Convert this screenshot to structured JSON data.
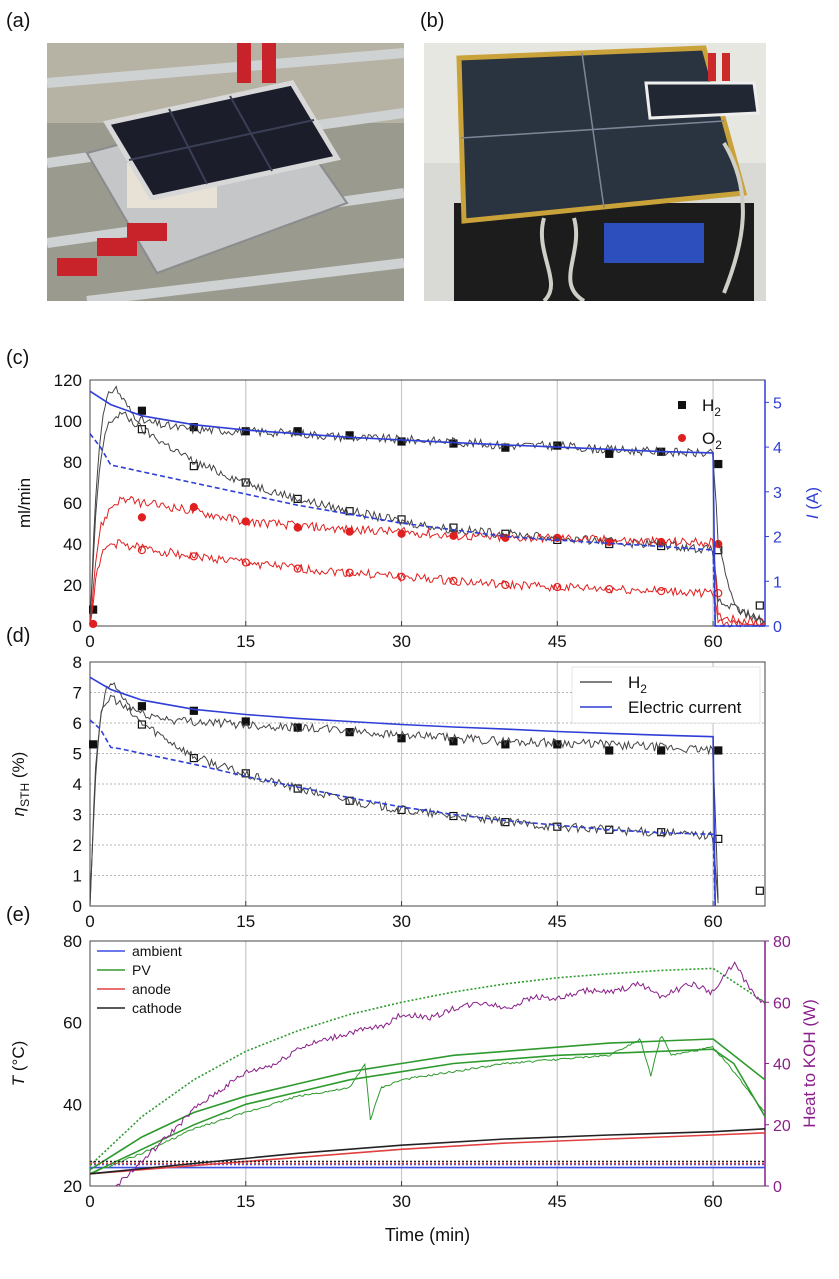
{
  "panels": {
    "a": "(a)",
    "b": "(b)",
    "c": "(c)",
    "d": "(d)",
    "e": "(e)"
  },
  "photos": {
    "a": "solar-cell-mini-module-on-rooftop-rack-photo",
    "b": "large-pv-panel-with-electrolyzer-in-lab-photo"
  },
  "colors": {
    "h2": "#111111",
    "o2": "#e02020",
    "current": "#2f3fd6",
    "ambient": "#3a4fe0",
    "pv": "#2e9a2e",
    "anode": "#e04040",
    "cathode": "#222222",
    "heat": "#8a1f8a",
    "grid": "#c8c8c8"
  },
  "chart_data": [
    {
      "id": "c",
      "type": "line",
      "xlabel": "",
      "ylabel": "ml/min",
      "y2label": "I (A)",
      "xlim": [
        0,
        65
      ],
      "ylim": [
        0,
        120
      ],
      "y2lim": [
        0,
        5.5
      ],
      "xticks": [
        0,
        15,
        30,
        45,
        60
      ],
      "yticks": [
        0,
        20,
        40,
        60,
        80,
        100,
        120
      ],
      "y2ticks": [
        0,
        1,
        2,
        3,
        4,
        5
      ],
      "legend": {
        "position": "top-right",
        "entries": [
          {
            "label": "H",
            "sub": "2",
            "marker": "square",
            "color": "#111111"
          },
          {
            "label": "O",
            "sub": "2",
            "marker": "circle",
            "color": "#e02020"
          }
        ]
      },
      "series": [
        {
          "name": "H2",
          "kind": "markers-filled",
          "color": "#111111",
          "x": [
            0.3,
            5,
            10,
            15,
            20,
            25,
            30,
            35,
            40,
            45,
            50,
            55,
            60.5
          ],
          "y": [
            8,
            105,
            97,
            95,
            95,
            93,
            90,
            89,
            87,
            88,
            84,
            85,
            79
          ]
        },
        {
          "kind": "markers-open",
          "color": "#111111",
          "x": [
            5,
            10,
            15,
            20,
            25,
            30,
            35,
            40,
            45,
            50,
            55,
            60.5,
            64.5
          ],
          "y": [
            96,
            78,
            70,
            62,
            56,
            52,
            48,
            45,
            42,
            40,
            39,
            37,
            10
          ]
        },
        {
          "name": "O2",
          "kind": "markers-filled",
          "color": "#e02020",
          "x": [
            0.3,
            5,
            10,
            15,
            20,
            25,
            30,
            35,
            40,
            45,
            50,
            55,
            60.5
          ],
          "y": [
            1,
            53,
            58,
            51,
            48,
            46,
            45,
            44,
            43,
            43,
            41,
            41,
            40
          ]
        },
        {
          "kind": "markers-open",
          "color": "#e02020",
          "x": [
            5,
            10,
            15,
            20,
            25,
            30,
            35,
            40,
            45,
            50,
            55,
            60.5,
            64.5
          ],
          "y": [
            37,
            34,
            31,
            28,
            26,
            24,
            22,
            20,
            19,
            18,
            17,
            16,
            2
          ]
        },
        {
          "kind": "noisy-line",
          "color": "#444444",
          "x": [
            0,
            0.5,
            1,
            1.5,
            2,
            2.5,
            3,
            4,
            5,
            8,
            10,
            15,
            20,
            25,
            30,
            35,
            40,
            45,
            50,
            55,
            60,
            60.5,
            62,
            63,
            64,
            65
          ],
          "y": [
            0,
            60,
            95,
            108,
            115,
            116,
            112,
            104,
            100,
            97,
            96,
            95,
            94,
            92,
            91,
            90,
            88,
            88,
            86,
            85,
            84,
            40,
            10,
            6,
            4,
            2
          ]
        },
        {
          "kind": "noisy-line",
          "color": "#444444",
          "x": [
            0,
            0.5,
            1,
            1.5,
            2,
            3,
            5,
            10,
            15,
            20,
            25,
            30,
            35,
            40,
            45,
            50,
            55,
            60,
            60.5,
            65
          ],
          "y": [
            0,
            50,
            80,
            95,
            100,
            104,
            96,
            80,
            70,
            62,
            56,
            51,
            47,
            45,
            43,
            41,
            40,
            37,
            12,
            2
          ]
        },
        {
          "kind": "noisy-line",
          "color": "#e02020",
          "x": [
            0,
            0.5,
            1,
            2,
            3,
            5,
            8,
            10,
            15,
            20,
            25,
            30,
            35,
            40,
            45,
            50,
            55,
            60,
            60.5,
            65
          ],
          "y": [
            0,
            30,
            48,
            58,
            62,
            60,
            58,
            56,
            51,
            49,
            47,
            46,
            44,
            43,
            43,
            42,
            41,
            41,
            5,
            1
          ]
        },
        {
          "kind": "noisy-line",
          "color": "#e02020",
          "x": [
            0,
            0.5,
            1,
            2,
            3,
            5,
            10,
            15,
            20,
            25,
            30,
            35,
            40,
            45,
            50,
            55,
            60,
            60.5,
            65
          ],
          "y": [
            0,
            20,
            34,
            40,
            40,
            38,
            34,
            31,
            28,
            26,
            24,
            22,
            20,
            19,
            18,
            17,
            16,
            2,
            0
          ]
        },
        {
          "kind": "line",
          "axis": "y2",
          "color": "#2f3fd6",
          "x": [
            0,
            1,
            2,
            5,
            10,
            15,
            20,
            25,
            30,
            35,
            40,
            45,
            50,
            55,
            60,
            60.2,
            65
          ],
          "y": [
            5.25,
            5.1,
            4.95,
            4.7,
            4.5,
            4.38,
            4.3,
            4.22,
            4.16,
            4.1,
            4.05,
            4.0,
            3.95,
            3.9,
            3.87,
            0,
            0
          ]
        },
        {
          "kind": "dashed-line",
          "axis": "y2",
          "color": "#2f3fd6",
          "x": [
            0,
            1,
            2,
            3,
            5,
            10,
            15,
            20,
            25,
            30,
            35,
            40,
            45,
            50,
            55,
            60,
            60.2,
            65
          ],
          "y": [
            4.3,
            4.0,
            3.6,
            3.55,
            3.45,
            3.2,
            2.95,
            2.7,
            2.5,
            2.3,
            2.15,
            2.0,
            1.92,
            1.85,
            1.78,
            1.7,
            0,
            0
          ]
        }
      ]
    },
    {
      "id": "d",
      "type": "line",
      "xlabel": "",
      "ylabel": "η",
      "ylabel_sub": "STH",
      "ylabel_unit": " (%)",
      "xlim": [
        0,
        65
      ],
      "ylim": [
        0,
        8
      ],
      "xticks": [
        0,
        15,
        30,
        45,
        60
      ],
      "yticks": [
        0,
        1,
        2,
        3,
        4,
        5,
        6,
        7,
        8
      ],
      "legend": {
        "position": "top-right",
        "entries": [
          {
            "label": "H",
            "sub": "2",
            "marker": "line",
            "color": "#555555"
          },
          {
            "label": "Electric current",
            "sub": "",
            "marker": "line",
            "color": "#2f3fd6"
          }
        ]
      },
      "series": [
        {
          "name": "H2",
          "kind": "markers-filled",
          "color": "#111111",
          "x": [
            0.3,
            5,
            10,
            15,
            20,
            25,
            30,
            35,
            40,
            45,
            50,
            55,
            60.5
          ],
          "y": [
            5.3,
            6.55,
            6.4,
            6.05,
            5.85,
            5.7,
            5.5,
            5.4,
            5.3,
            5.3,
            5.1,
            5.1,
            5.1
          ]
        },
        {
          "kind": "markers-open",
          "color": "#111111",
          "x": [
            5,
            10,
            15,
            20,
            25,
            30,
            35,
            40,
            45,
            50,
            55,
            60.5,
            64.5
          ],
          "y": [
            5.95,
            4.85,
            4.35,
            3.85,
            3.45,
            3.15,
            2.95,
            2.75,
            2.6,
            2.5,
            2.42,
            2.2,
            0.5
          ]
        },
        {
          "kind": "noisy-line",
          "color": "#444444",
          "x": [
            0,
            0.5,
            1,
            1.5,
            2,
            2.5,
            3,
            4,
            5,
            8,
            10,
            15,
            20,
            25,
            30,
            35,
            40,
            45,
            50,
            55,
            60,
            60.5
          ],
          "y": [
            0,
            4,
            6.2,
            7.0,
            7.3,
            7.2,
            6.9,
            6.5,
            6.3,
            6.1,
            6.05,
            5.95,
            5.85,
            5.75,
            5.6,
            5.5,
            5.4,
            5.35,
            5.3,
            5.2,
            5.1,
            0
          ]
        },
        {
          "kind": "noisy-line",
          "color": "#444444",
          "x": [
            0,
            0.5,
            1,
            2,
            3,
            5,
            10,
            15,
            20,
            25,
            30,
            35,
            40,
            45,
            50,
            55,
            60,
            60.5
          ],
          "y": [
            0,
            4.5,
            6.2,
            6.9,
            6.6,
            6.0,
            4.9,
            4.3,
            3.85,
            3.45,
            3.15,
            2.95,
            2.75,
            2.6,
            2.5,
            2.4,
            2.3,
            0
          ]
        },
        {
          "name": "Electric current",
          "kind": "line",
          "color": "#2f3fd6",
          "x": [
            0,
            1,
            2,
            5,
            10,
            15,
            20,
            25,
            30,
            35,
            40,
            45,
            50,
            55,
            60,
            60.2
          ],
          "y": [
            7.5,
            7.3,
            7.1,
            6.75,
            6.45,
            6.28,
            6.15,
            6.05,
            5.95,
            5.87,
            5.8,
            5.72,
            5.66,
            5.6,
            5.55,
            0
          ]
        },
        {
          "kind": "dashed-line",
          "color": "#2f3fd6",
          "x": [
            0,
            1,
            2,
            3,
            5,
            10,
            15,
            20,
            25,
            30,
            35,
            40,
            45,
            50,
            55,
            60,
            60.2
          ],
          "y": [
            6.1,
            5.8,
            5.2,
            5.15,
            5.0,
            4.65,
            4.25,
            3.9,
            3.55,
            3.25,
            3.0,
            2.8,
            2.65,
            2.5,
            2.4,
            2.35,
            0
          ]
        }
      ]
    },
    {
      "id": "e",
      "type": "line",
      "xlabel": "Time (min)",
      "ylabel": "T (°C)",
      "y2label": "Heat to KOH (W)",
      "xlim": [
        0,
        65
      ],
      "ylim": [
        20,
        80
      ],
      "y2lim": [
        0,
        80
      ],
      "xticks": [
        0,
        15,
        30,
        45,
        60
      ],
      "yticks": [
        20,
        40,
        60,
        80
      ],
      "y2ticks": [
        0,
        20,
        40,
        60,
        80
      ],
      "legend": {
        "position": "top-left",
        "entries": [
          {
            "label": "ambient",
            "color": "#3a4fe0"
          },
          {
            "label": "PV",
            "color": "#2e9a2e"
          },
          {
            "label": "anode",
            "color": "#e04040"
          },
          {
            "label": "cathode",
            "color": "#222222"
          }
        ]
      },
      "series": [
        {
          "name": "ambient",
          "kind": "line",
          "color": "#3a4fe0",
          "x": [
            0,
            65
          ],
          "y": [
            24.5,
            24.5
          ]
        },
        {
          "kind": "dotted-line",
          "color": "#3a4fe0",
          "x": [
            0,
            65
          ],
          "y": [
            25.3,
            25.3
          ]
        },
        {
          "name": "PV",
          "kind": "line",
          "color": "#2e9a2e",
          "x": [
            0,
            5,
            10,
            15,
            20,
            25,
            30,
            35,
            40,
            45,
            50,
            55,
            60,
            62,
            65
          ],
          "y": [
            24,
            32,
            38,
            42,
            45,
            48,
            50,
            52,
            53,
            54,
            55,
            55.5,
            56,
            52,
            46
          ]
        },
        {
          "kind": "line",
          "color": "#2e9a2e",
          "x": [
            0,
            5,
            10,
            15,
            20,
            25,
            30,
            35,
            40,
            45,
            50,
            55,
            60,
            62,
            65
          ],
          "y": [
            23,
            29,
            35,
            40,
            43,
            46,
            48,
            50,
            51,
            52,
            52.5,
            53,
            53.5,
            50,
            37
          ]
        },
        {
          "kind": "noisy-line",
          "color": "#2e9a2e",
          "x": [
            0,
            5,
            10,
            15,
            20,
            25,
            26.5,
            27,
            28,
            30,
            35,
            40,
            45,
            50,
            53,
            54,
            55,
            56,
            60,
            62,
            65
          ],
          "y": [
            23,
            28,
            34,
            38,
            42,
            44,
            50,
            36,
            44,
            46,
            48,
            50,
            51,
            52,
            56,
            47,
            57,
            52,
            54,
            48,
            38
          ]
        },
        {
          "kind": "dotted-line",
          "color": "#2e9a2e",
          "x": [
            0,
            5,
            10,
            15,
            20,
            25,
            30,
            35,
            40,
            45,
            50,
            55,
            60,
            62,
            65
          ],
          "y": [
            25,
            37,
            46,
            53,
            58,
            62,
            65,
            67.5,
            69.5,
            71,
            72,
            72.8,
            73.3,
            70,
            65
          ]
        },
        {
          "name": "anode",
          "kind": "line",
          "color": "#e04040",
          "x": [
            0,
            10,
            20,
            30,
            40,
            50,
            60,
            65
          ],
          "y": [
            23,
            25,
            27,
            29,
            30.5,
            31.5,
            32.5,
            33
          ]
        },
        {
          "kind": "dotted-line",
          "color": "#e04040",
          "x": [
            0,
            65
          ],
          "y": [
            25.5,
            25.5
          ]
        },
        {
          "name": "cathode",
          "kind": "line",
          "color": "#222222",
          "x": [
            0,
            10,
            20,
            30,
            40,
            50,
            60,
            65
          ],
          "y": [
            23,
            25.5,
            28,
            30,
            31.5,
            32.5,
            33.3,
            34
          ]
        },
        {
          "kind": "dotted-line",
          "color": "#222222",
          "x": [
            0,
            65
          ],
          "y": [
            26,
            26
          ]
        },
        {
          "name": "Heat to KOH",
          "kind": "noisy-line",
          "axis": "y2",
          "color": "#8a1f8a",
          "x": [
            2.5,
            5,
            8,
            10,
            12,
            15,
            18,
            20,
            23,
            25,
            28,
            30,
            33,
            35,
            38,
            40,
            43,
            45,
            48,
            50,
            53,
            55,
            58,
            60,
            62,
            64,
            65
          ],
          "y": [
            0,
            8,
            18,
            25,
            30,
            37,
            40,
            45,
            48,
            50,
            52,
            56,
            55,
            58,
            60,
            58,
            62,
            61,
            64,
            63,
            66,
            62,
            66,
            63,
            73,
            62,
            59
          ]
        }
      ]
    }
  ]
}
